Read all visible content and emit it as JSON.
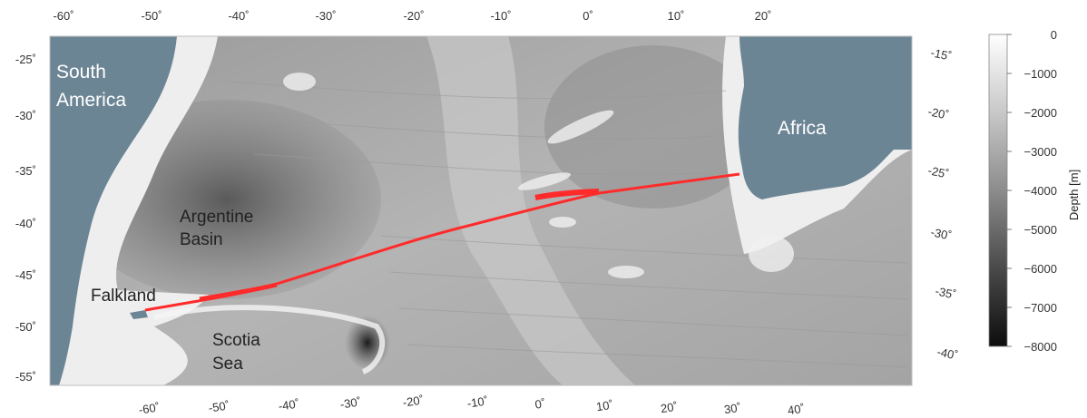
{
  "map": {
    "top_lon_ticks": [
      "-60˚",
      "-50˚",
      "-40˚",
      "-30˚",
      "-20˚",
      "-10˚",
      "0˚",
      "10˚",
      "20˚"
    ],
    "bottom_lon_ticks": [
      "-60˚",
      "-50˚",
      "-40˚",
      "-30˚",
      "-20˚",
      "-10˚",
      "0˚",
      "10˚",
      "20˚",
      "30˚",
      "40˚"
    ],
    "left_lat_ticks": [
      "-25˚",
      "-30˚",
      "-35˚",
      "-40˚",
      "-45˚",
      "-50˚",
      "-55˚"
    ],
    "right_lat_ticks": [
      "-15˚",
      "-20˚",
      "-25˚",
      "-30˚",
      "-35˚",
      "-40˚"
    ],
    "regions": {
      "south_america": [
        "South",
        "America"
      ],
      "africa": "Africa",
      "argentine_basin": [
        "Argentine",
        "Basin"
      ],
      "falkland": "Falkland",
      "scotia_sea": [
        "Scotia",
        "Sea"
      ]
    },
    "track_color": "#ff2b2b",
    "land_color": "#6c8595"
  },
  "colorbar": {
    "label": "Depth [m]",
    "ticks": [
      "0",
      "−1000",
      "−2000",
      "−3000",
      "−4000",
      "−5000",
      "−6000",
      "−7000",
      "−8000"
    ],
    "range_m": [
      0,
      -8000
    ],
    "colors": [
      "#ffffff",
      "#111111"
    ]
  }
}
